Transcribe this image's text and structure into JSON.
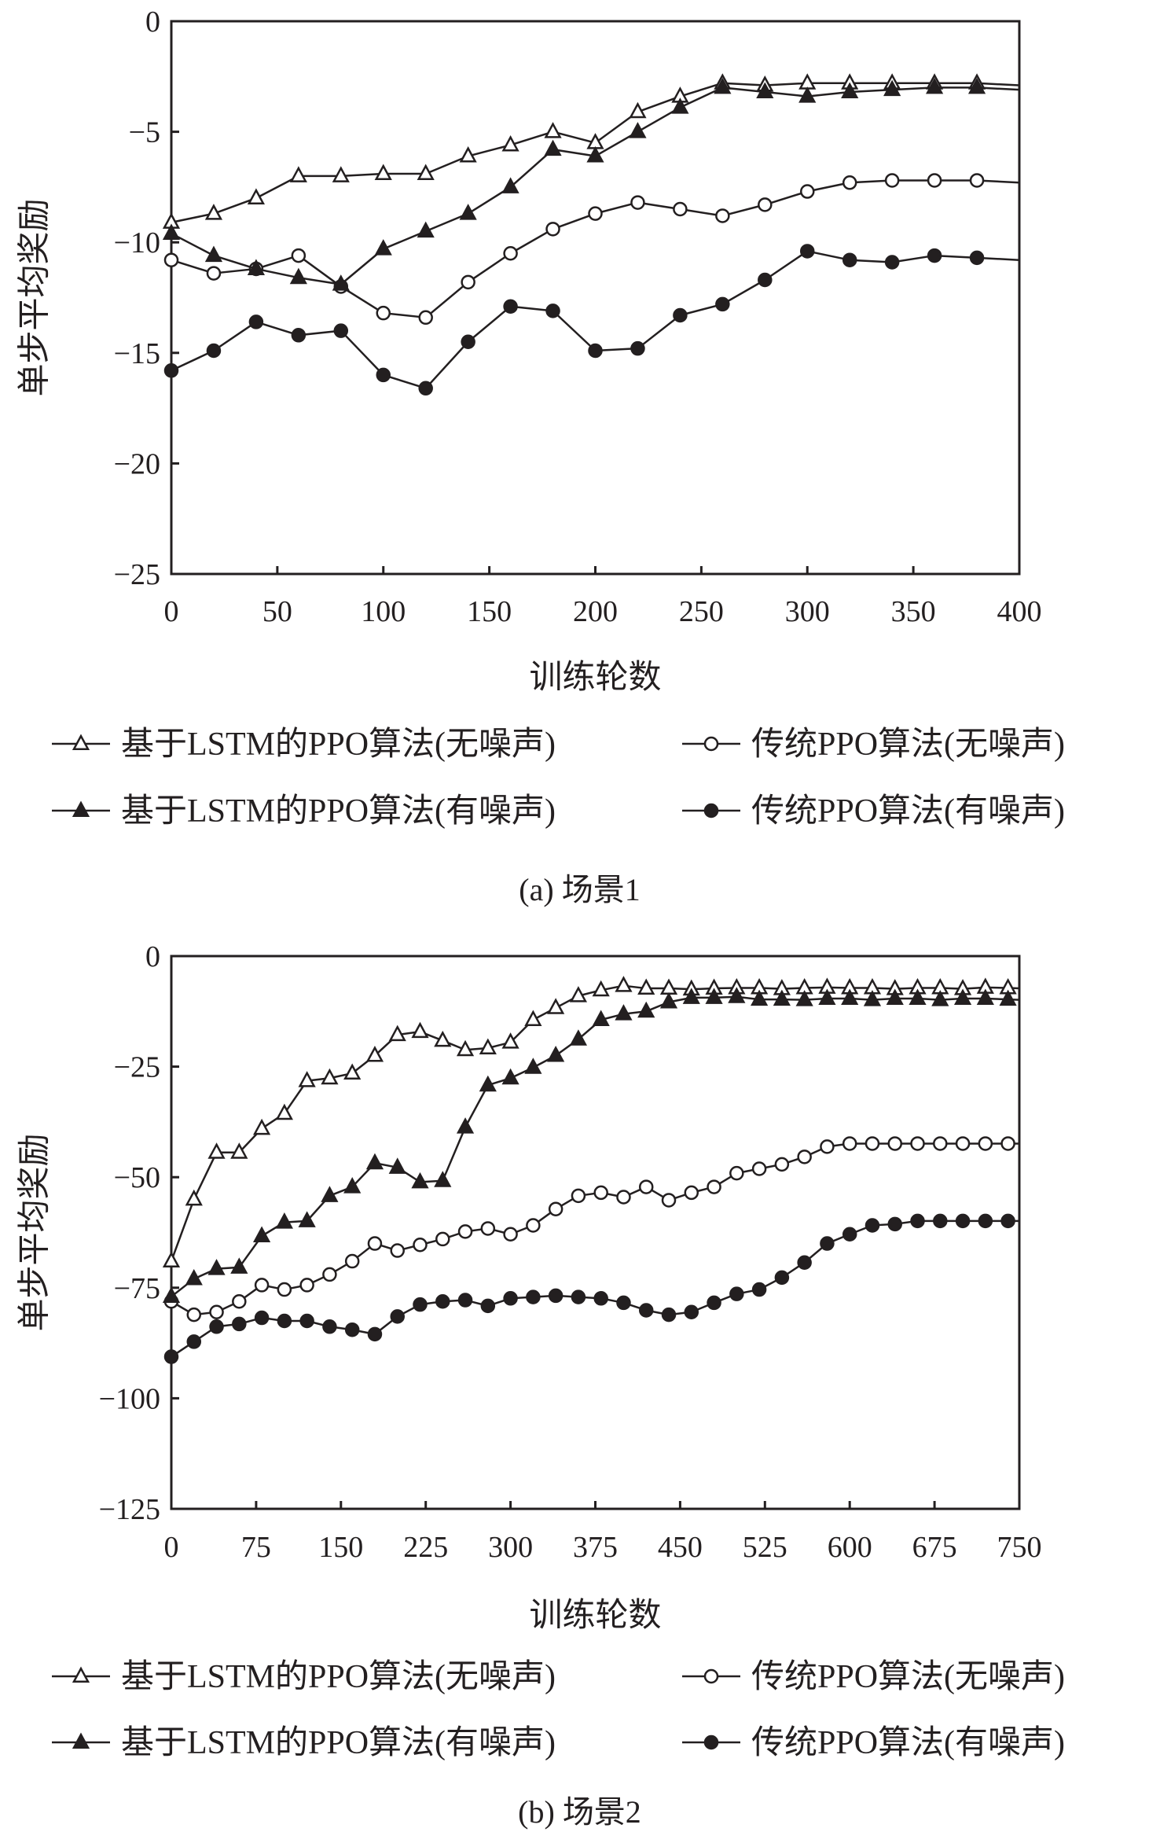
{
  "chart_data": [
    {
      "type": "line",
      "caption": "(a) 场景1",
      "xlabel": "训练轮数",
      "ylabel": "单步平均奖励",
      "xlim": [
        0,
        400
      ],
      "ylim": [
        -25,
        0
      ],
      "xticks": [
        "0",
        "50",
        "100",
        "150",
        "200",
        "250",
        "300",
        "350",
        "400"
      ],
      "yticks": [
        "0",
        "−5",
        "−10",
        "−15",
        "−20",
        "−25"
      ],
      "grid": false,
      "legend_position": "bottom",
      "x": [
        0,
        20,
        40,
        60,
        80,
        100,
        120,
        140,
        160,
        180,
        200,
        220,
        240,
        260,
        280,
        300,
        320,
        340,
        360,
        380,
        400
      ],
      "series": [
        {
          "name": "基于LSTM的PPO算法(无噪声)",
          "marker": "open-triangle",
          "values": [
            -9.1,
            -8.7,
            -8.0,
            -7.0,
            -7.0,
            -6.9,
            -6.9,
            -6.1,
            -5.6,
            -5.0,
            -5.5,
            -4.1,
            -3.4,
            -2.8,
            -2.9,
            -2.8,
            -2.8,
            -2.8,
            -2.8,
            -2.8,
            -2.9
          ]
        },
        {
          "name": "传统PPO算法(无噪声)",
          "marker": "open-circle",
          "values": [
            -10.8,
            -11.4,
            -11.2,
            -10.6,
            -12.0,
            -13.2,
            -13.4,
            -11.8,
            -10.5,
            -9.4,
            -8.7,
            -8.2,
            -8.5,
            -8.8,
            -8.3,
            -7.7,
            -7.3,
            -7.2,
            -7.2,
            -7.2,
            -7.3
          ]
        },
        {
          "name": "基于LSTM的PPO算法(有噪声)",
          "marker": "filled-triangle",
          "values": [
            -9.6,
            -10.6,
            -11.2,
            -11.6,
            -11.9,
            -10.3,
            -9.5,
            -8.7,
            -7.5,
            -5.8,
            -6.1,
            -5.0,
            -3.9,
            -3.0,
            -3.2,
            -3.4,
            -3.2,
            -3.1,
            -3.0,
            -3.0,
            -3.1
          ]
        },
        {
          "name": "传统PPO算法(有噪声)",
          "marker": "filled-circle",
          "values": [
            -15.8,
            -14.9,
            -13.6,
            -14.2,
            -14.0,
            -16.0,
            -16.6,
            -14.5,
            -12.9,
            -13.1,
            -14.9,
            -14.8,
            -13.3,
            -12.8,
            -11.7,
            -10.4,
            -10.8,
            -10.9,
            -10.6,
            -10.7,
            -10.8
          ]
        }
      ]
    },
    {
      "type": "line",
      "caption": "(b) 场景2",
      "xlabel": "训练轮数",
      "ylabel": "单步平均奖励",
      "xlim": [
        0,
        750
      ],
      "ylim": [
        -125,
        0
      ],
      "xticks": [
        "0",
        "75",
        "150",
        "225",
        "300",
        "375",
        "450",
        "525",
        "600",
        "675",
        "750"
      ],
      "yticks": [
        "0",
        "−25",
        "−50",
        "−75",
        "−100",
        "−125"
      ],
      "grid": false,
      "legend_position": "bottom",
      "x": [
        0,
        20,
        40,
        60,
        80,
        100,
        120,
        140,
        160,
        180,
        200,
        220,
        240,
        260,
        280,
        300,
        320,
        340,
        360,
        380,
        400,
        420,
        440,
        460,
        480,
        500,
        520,
        540,
        560,
        580,
        600,
        620,
        640,
        660,
        680,
        700,
        720,
        740,
        750
      ],
      "series": [
        {
          "name": "基于LSTM的PPO算法(无噪声)",
          "marker": "open-triangle",
          "values": [
            -69,
            -55,
            -44.4,
            -44.4,
            -39,
            -35.6,
            -28.2,
            -27.6,
            -26.5,
            -22.5,
            -17.8,
            -17.1,
            -19.1,
            -21.2,
            -20.8,
            -19.5,
            -14.4,
            -11.7,
            -9.0,
            -7.7,
            -6.7,
            -7.3,
            -7.3,
            -7.5,
            -7.3,
            -7.2,
            -7.2,
            -7.4,
            -7.2,
            -7.1,
            -7.2,
            -7.2,
            -7.4,
            -7.2,
            -7.2,
            -7.4,
            -7.1,
            -7.2,
            -7.3
          ]
        },
        {
          "name": "传统PPO算法(无噪声)",
          "marker": "open-circle",
          "values": [
            -78.1,
            -81.1,
            -80.5,
            -78.1,
            -74.4,
            -75.4,
            -74.4,
            -72,
            -69,
            -65,
            -66.6,
            -65.3,
            -64,
            -62.3,
            -61.6,
            -62.9,
            -60.9,
            -57.2,
            -54.2,
            -53.5,
            -54.5,
            -52.2,
            -55.2,
            -53.5,
            -52.2,
            -49.1,
            -48.1,
            -47.1,
            -45.4,
            -43.1,
            -42.4,
            -42.4,
            -42.4,
            -42.4,
            -42.4,
            -42.4,
            -42.4,
            -42.4,
            -42.4
          ]
        },
        {
          "name": "基于LSTM的PPO算法(有噪声)",
          "marker": "filled-triangle",
          "values": [
            -77,
            -73,
            -70.7,
            -70.4,
            -63.3,
            -60.2,
            -59.9,
            -54.2,
            -52.2,
            -46.8,
            -47.8,
            -51.1,
            -50.8,
            -38.7,
            -29.2,
            -27.6,
            -25.2,
            -22.5,
            -18.8,
            -14.4,
            -13.1,
            -12.5,
            -10.4,
            -9.4,
            -9.4,
            -9.2,
            -9.8,
            -9.8,
            -9.9,
            -9.6,
            -9.6,
            -9.9,
            -9.6,
            -9.6,
            -9.9,
            -9.6,
            -9.6,
            -9.8,
            -9.9
          ]
        },
        {
          "name": "传统PPO算法(有噪声)",
          "marker": "filled-circle",
          "values": [
            -90.6,
            -87.2,
            -83.8,
            -83.2,
            -81.8,
            -82.5,
            -82.5,
            -83.8,
            -84.5,
            -85.5,
            -81.5,
            -78.8,
            -78.1,
            -77.8,
            -79.1,
            -77.4,
            -77.1,
            -76.8,
            -77.1,
            -77.4,
            -78.4,
            -80.1,
            -81.1,
            -80.5,
            -78.4,
            -76.4,
            -75.4,
            -72.7,
            -69.3,
            -65,
            -62.9,
            -60.9,
            -60.6,
            -59.9,
            -59.9,
            -59.9,
            -59.9,
            -59.9,
            -59.9
          ]
        }
      ]
    }
  ]
}
